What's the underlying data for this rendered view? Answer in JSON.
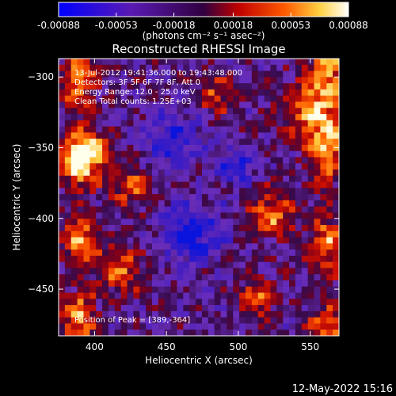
{
  "chart_data": {
    "type": "heatmap",
    "title": "Reconstructed RHESSI Image",
    "xlabel": "Heliocentric X (arcsec)",
    "ylabel": "Heliocentric Y (arcsec)",
    "xlim": [
      375,
      570
    ],
    "ylim": [
      -483,
      -287
    ],
    "x_ticks": [
      "400",
      "450",
      "500",
      "550"
    ],
    "x_tick_values": [
      400,
      450,
      500,
      550
    ],
    "y_ticks": [
      "-300",
      "-350",
      "-400",
      "-450"
    ],
    "y_tick_values": [
      -300,
      -350,
      -400,
      -450
    ],
    "colorbar": {
      "min": -0.00088,
      "max": 0.00088,
      "tick_labels": [
        "-0.00088",
        "-0.00053",
        "-0.00018",
        "0.00018",
        "0.00053",
        "0.00088"
      ],
      "tick_values": [
        -0.00088,
        -0.00053,
        -0.00018,
        0.00018,
        0.00053,
        0.00088
      ],
      "units_label": "(photons cm⁻² s⁻¹ asec⁻²)"
    },
    "annotations": {
      "time_range": "13-Jul-2012 19:41:36.000 to 19:43:48.000",
      "detectors": "Detectors: 3F 5F 6F 7F 8F, Att 0",
      "energy_range": "Energy Range: 12.0 - 25.0 keV",
      "clean_counts": "Clean    Total counts: 1.25E+03",
      "peak_position": "Position of Peak = [389,-364]"
    },
    "peak": {
      "x": 389,
      "y": -364
    }
  },
  "footer": {
    "timestamp": "12-May-2022 15:16"
  }
}
